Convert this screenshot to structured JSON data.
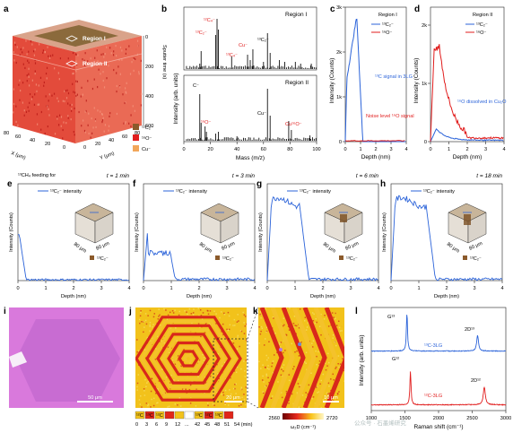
{
  "panels": {
    "a": {
      "label": "a",
      "region1": "Region I",
      "region2": "Region II",
      "z_axis_label": "Sputter time (s)",
      "z_ticks": [
        "0",
        "200",
        "400",
        "600"
      ],
      "x_axis_label": "X (μm)",
      "x_ticks": [
        "0",
        "20",
        "40",
        "60",
        "80"
      ],
      "y_axis_label": "Y (μm)",
      "y_ticks": [
        "0",
        "20",
        "40",
        "60",
        "80"
      ],
      "legend": [
        {
          "label": "¹²C₂⁻",
          "color": "#8b5a2b"
        },
        {
          "label": "¹⁶O⁻",
          "color": "#e11d1d"
        },
        {
          "label": "Cu⁻",
          "color": "#f2a65a"
        }
      ]
    },
    "b": {
      "label": "b",
      "ylabel": "Intensity (arb. units)",
      "xlabel": "Mass (m/z)",
      "xticks": [
        "0",
        "20",
        "40",
        "60",
        "80",
        "100"
      ],
      "region_top": "Region I",
      "region_bottom": "Region II",
      "annotations_top": [
        "¹³C₂⁻",
        "¹²C₄⁻",
        "¹³C₄⁻",
        "Cu⁻",
        "¹³C₂⁻"
      ],
      "annotations_bottom": [
        "C⁻",
        "¹⁶O⁻",
        "Cu⁻",
        "Cu¹⁶O⁻"
      ]
    },
    "c": {
      "label": "c",
      "region": "Region I",
      "ylabel": "Intensity (Counts)",
      "xlabel": "Depth (nm)",
      "yticks": [
        "0",
        "1k",
        "2k",
        "3k"
      ],
      "xticks": [
        "0",
        "1",
        "2",
        "3",
        "4"
      ],
      "legend": [
        "¹³C₂⁻",
        "¹⁶O⁻"
      ],
      "note1": "¹³C signal in 3LG",
      "note2": "Noise level ¹⁶O signal"
    },
    "d": {
      "label": "d",
      "region": "Region II",
      "ylabel": "Intensity (Counts)",
      "xlabel": "Depth (nm)",
      "yticks": [
        "0",
        "1k",
        "2k"
      ],
      "xticks": [
        "0",
        "1",
        "2",
        "3",
        "4"
      ],
      "legend": [
        "¹³C₂⁻",
        "¹⁶O⁻"
      ],
      "note": "¹⁶O dissolved in Cu₂O"
    },
    "e": {
      "label": "e",
      "time": "t = 1 min",
      "feed": "¹³CH₄ feeding for",
      "legend": "¹³C₂⁻ intensity",
      "species": "¹³C₂⁻"
    },
    "f": {
      "label": "f",
      "time": "t = 3 min",
      "legend": "¹³C₂⁻ intensity",
      "species": "¹³C₂⁻"
    },
    "g": {
      "label": "g",
      "time": "t = 6 min",
      "legend": "¹³C₂⁻ intensity",
      "species": "¹³C₂⁻"
    },
    "h": {
      "label": "h",
      "time": "t = 18 min",
      "legend": "¹³C₂⁻ intensity",
      "species": "¹³C₂⁻"
    },
    "time_series_axes": {
      "ylabel": "Intensity (Counts)",
      "xlabel": "Depth (nm)",
      "xticks": [
        "0",
        "1",
        "2",
        "3",
        "4"
      ],
      "inset_axis": "80 μm"
    },
    "i": {
      "label": "i",
      "scale": "50 μm"
    },
    "j": {
      "label": "j",
      "scale": "20 μm",
      "legend_numbers": [
        "0",
        "3",
        "6",
        "9",
        "12",
        "...",
        "42",
        "45",
        "48",
        "51",
        "54 (min)"
      ],
      "legend_tags": [
        "¹²C",
        "¹³C",
        "¹²C",
        "¹³C",
        "¹²C",
        "¹³C"
      ]
    },
    "k": {
      "label": "k",
      "scale": "10 μm",
      "colorbar_min": "2560",
      "colorbar_max": "2720",
      "colorbar_label": "ω₂D (cm⁻¹)"
    },
    "l": {
      "label": "l",
      "ylabel": "Intensity (arb. units)",
      "xlabel": "Raman shift (cm⁻¹)",
      "xticks": [
        "1000",
        "1500",
        "2000",
        "2500",
        "3000"
      ],
      "top_peak1": "G¹³",
      "top_peak2": "2D¹³",
      "top_label": "¹³C-3LG",
      "bot_peak1": "G¹²",
      "bot_peak2": "2D¹²",
      "bot_label": "¹²C-3LG"
    }
  },
  "watermark": "公众号 · 石墨烯研究"
}
